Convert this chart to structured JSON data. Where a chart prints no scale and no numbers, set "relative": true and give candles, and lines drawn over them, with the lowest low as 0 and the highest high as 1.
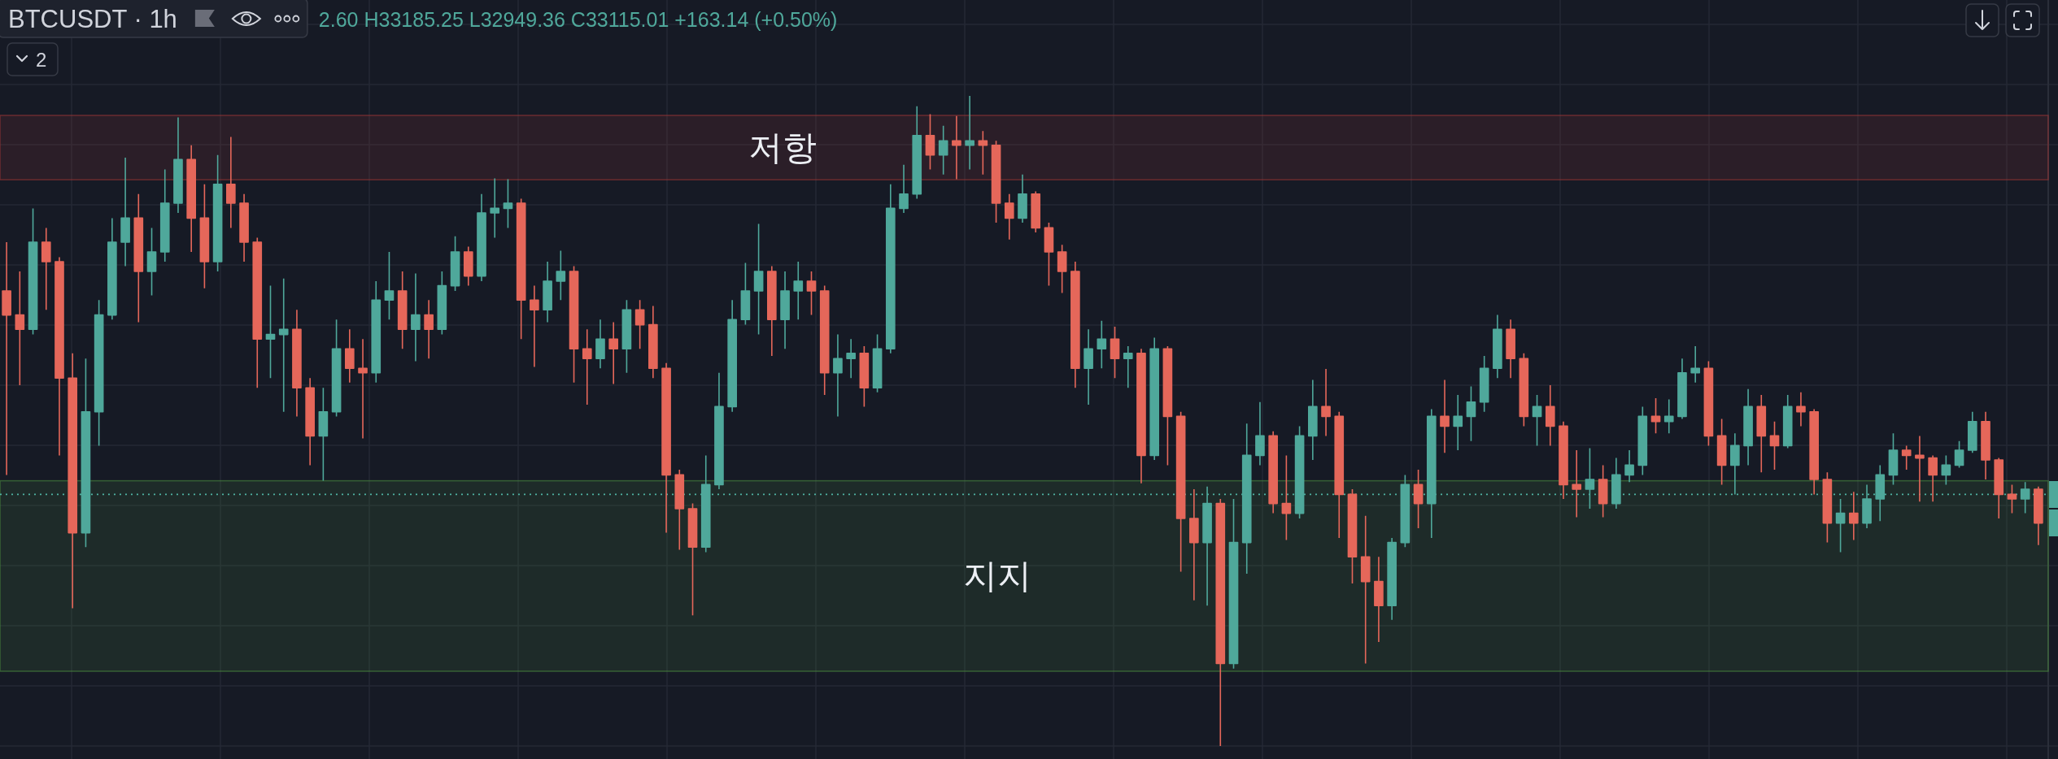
{
  "chart_data": {
    "type": "candlestick",
    "title": "BTCUSDT · 1h",
    "relative": true,
    "grid": true,
    "annotations": [
      "2.60 H33185.25 L32949.36 C33115.01 +163.14 (+0.50%)",
      "2"
    ],
    "bands": [
      {
        "axis": "y",
        "from": 0.871,
        "to": 0.97,
        "label": "저항",
        "color": "#9b3535"
      },
      {
        "axis": "y",
        "from": 0.115,
        "to": 0.408,
        "label": "지지",
        "color": "#4a8a3f"
      }
    ],
    "ref_lines": [
      {
        "axis": "y",
        "value": 0.387,
        "color": "#4fb3a3",
        "line_style": "dotted"
      }
    ],
    "categories": [
      null,
      null,
      null,
      null,
      null,
      null,
      null,
      null,
      null,
      null,
      null,
      null,
      null,
      null,
      null,
      null,
      null,
      null,
      null,
      null,
      null,
      null,
      null,
      null,
      null,
      null,
      null,
      null,
      null,
      null,
      null,
      null,
      null,
      null,
      null,
      null,
      null,
      null,
      null,
      null,
      null,
      null,
      null,
      null,
      null,
      null,
      null,
      null,
      null,
      null,
      null,
      null,
      null,
      null,
      null,
      null,
      null,
      null,
      null,
      null,
      null,
      null,
      null,
      null,
      null,
      null,
      null,
      null,
      null,
      null,
      null,
      null,
      null,
      null,
      null,
      null,
      null,
      null,
      null,
      null,
      null,
      null,
      null,
      null,
      null,
      null,
      null,
      null,
      null,
      null,
      null,
      null,
      null,
      null,
      null,
      null,
      null,
      null,
      null,
      null,
      null,
      null,
      null,
      null,
      null,
      null,
      null,
      null,
      null,
      null,
      null,
      null,
      null,
      null,
      null,
      null,
      null,
      null,
      null,
      null,
      null,
      null,
      null,
      null,
      null,
      null,
      null,
      null,
      null,
      null,
      null,
      null,
      null,
      null,
      null,
      null,
      null,
      null,
      null,
      null,
      null,
      null,
      null,
      null,
      null,
      null,
      null,
      null,
      null,
      null,
      null,
      null,
      null,
      null,
      null
    ],
    "ohlc": [
      [
        0.7,
        0.775,
        0.417,
        0.663
      ],
      [
        0.663,
        0.73,
        0.555,
        0.641
      ],
      [
        0.641,
        0.827,
        0.633,
        0.775
      ],
      [
        0.775,
        0.797,
        0.671,
        0.745
      ],
      [
        0.745,
        0.752,
        0.447,
        0.566
      ],
      [
        0.566,
        0.604,
        0.212,
        0.328
      ],
      [
        0.328,
        0.596,
        0.306,
        0.514
      ],
      [
        0.514,
        0.686,
        0.462,
        0.663
      ],
      [
        0.663,
        0.812,
        0.656,
        0.775
      ],
      [
        0.775,
        0.905,
        0.738,
        0.812
      ],
      [
        0.812,
        0.849,
        0.652,
        0.73
      ],
      [
        0.73,
        0.797,
        0.693,
        0.76
      ],
      [
        0.76,
        0.887,
        0.745,
        0.835
      ],
      [
        0.835,
        0.967,
        0.82,
        0.902
      ],
      [
        0.902,
        0.924,
        0.76,
        0.812
      ],
      [
        0.812,
        0.864,
        0.704,
        0.745
      ],
      [
        0.745,
        0.909,
        0.73,
        0.864
      ],
      [
        0.864,
        0.937,
        0.797,
        0.835
      ],
      [
        0.835,
        0.849,
        0.745,
        0.775
      ],
      [
        0.775,
        0.782,
        0.551,
        0.626
      ],
      [
        0.626,
        0.708,
        0.566,
        0.633
      ],
      [
        0.633,
        0.719,
        0.514,
        0.641
      ],
      [
        0.641,
        0.671,
        0.507,
        0.551
      ],
      [
        0.551,
        0.566,
        0.432,
        0.477
      ],
      [
        0.477,
        0.551,
        0.408,
        0.514
      ],
      [
        0.514,
        0.656,
        0.507,
        0.611
      ],
      [
        0.611,
        0.641,
        0.559,
        0.581
      ],
      [
        0.581,
        0.626,
        0.473,
        0.574
      ],
      [
        0.574,
        0.715,
        0.559,
        0.686
      ],
      [
        0.686,
        0.76,
        0.656,
        0.7
      ],
      [
        0.7,
        0.73,
        0.611,
        0.641
      ],
      [
        0.641,
        0.727,
        0.592,
        0.663
      ],
      [
        0.663,
        0.686,
        0.596,
        0.641
      ],
      [
        0.641,
        0.73,
        0.633,
        0.708
      ],
      [
        0.708,
        0.784,
        0.7,
        0.76
      ],
      [
        0.76,
        0.768,
        0.708,
        0.723
      ],
      [
        0.723,
        0.849,
        0.715,
        0.82
      ],
      [
        0.82,
        0.873,
        0.782,
        0.827
      ],
      [
        0.827,
        0.872,
        0.797,
        0.835
      ],
      [
        0.835,
        0.842,
        0.626,
        0.686
      ],
      [
        0.686,
        0.708,
        0.583,
        0.671
      ],
      [
        0.671,
        0.745,
        0.652,
        0.715
      ],
      [
        0.715,
        0.762,
        0.686,
        0.73
      ],
      [
        0.73,
        0.738,
        0.559,
        0.611
      ],
      [
        0.611,
        0.641,
        0.525,
        0.596
      ],
      [
        0.596,
        0.656,
        0.581,
        0.626
      ],
      [
        0.626,
        0.652,
        0.557,
        0.611
      ],
      [
        0.611,
        0.686,
        0.574,
        0.671
      ],
      [
        0.671,
        0.686,
        0.611,
        0.648
      ],
      [
        0.648,
        0.677,
        0.566,
        0.581
      ],
      [
        0.581,
        0.589,
        0.328,
        0.417
      ],
      [
        0.417,
        0.425,
        0.302,
        0.365
      ],
      [
        0.365,
        0.373,
        0.201,
        0.306
      ],
      [
        0.306,
        0.447,
        0.298,
        0.402
      ],
      [
        0.402,
        0.574,
        0.395,
        0.522
      ],
      [
        0.522,
        0.686,
        0.514,
        0.656
      ],
      [
        0.656,
        0.743,
        0.648,
        0.7
      ],
      [
        0.7,
        0.803,
        0.633,
        0.73
      ],
      [
        0.73,
        0.738,
        0.6,
        0.656
      ],
      [
        0.656,
        0.73,
        0.611,
        0.7
      ],
      [
        0.7,
        0.745,
        0.656,
        0.715
      ],
      [
        0.715,
        0.73,
        0.663,
        0.7
      ],
      [
        0.7,
        0.708,
        0.54,
        0.574
      ],
      [
        0.574,
        0.633,
        0.507,
        0.596
      ],
      [
        0.596,
        0.626,
        0.566,
        0.604
      ],
      [
        0.604,
        0.615,
        0.522,
        0.551
      ],
      [
        0.551,
        0.633,
        0.544,
        0.611
      ],
      [
        0.611,
        0.864,
        0.604,
        0.827
      ],
      [
        0.827,
        0.894,
        0.82,
        0.849
      ],
      [
        0.849,
        0.984,
        0.842,
        0.939
      ],
      [
        0.939,
        0.972,
        0.887,
        0.909
      ],
      [
        0.909,
        0.954,
        0.879,
        0.931
      ],
      [
        0.931,
        0.969,
        0.872,
        0.924
      ],
      [
        0.924,
        1.0,
        0.887,
        0.931
      ],
      [
        0.931,
        0.946,
        0.879,
        0.924
      ],
      [
        0.924,
        0.931,
        0.805,
        0.835
      ],
      [
        0.835,
        0.849,
        0.779,
        0.812
      ],
      [
        0.812,
        0.879,
        0.805,
        0.849
      ],
      [
        0.849,
        0.853,
        0.79,
        0.797
      ],
      [
        0.797,
        0.805,
        0.708,
        0.76
      ],
      [
        0.76,
        0.771,
        0.697,
        0.73
      ],
      [
        0.73,
        0.745,
        0.551,
        0.581
      ],
      [
        0.581,
        0.641,
        0.525,
        0.611
      ],
      [
        0.611,
        0.654,
        0.581,
        0.626
      ],
      [
        0.626,
        0.645,
        0.566,
        0.596
      ],
      [
        0.596,
        0.615,
        0.551,
        0.604
      ],
      [
        0.604,
        0.611,
        0.404,
        0.447
      ],
      [
        0.447,
        0.628,
        0.44,
        0.611
      ],
      [
        0.611,
        0.615,
        0.432,
        0.507
      ],
      [
        0.507,
        0.514,
        0.268,
        0.35
      ],
      [
        0.35,
        0.395,
        0.224,
        0.313
      ],
      [
        0.313,
        0.399,
        0.216,
        0.373
      ],
      [
        0.373,
        0.38,
        0.0,
        0.127
      ],
      [
        0.127,
        0.38,
        0.119,
        0.313
      ],
      [
        0.313,
        0.496,
        0.265,
        0.447
      ],
      [
        0.447,
        0.529,
        0.432,
        0.477
      ],
      [
        0.477,
        0.484,
        0.358,
        0.373
      ],
      [
        0.373,
        0.447,
        0.317,
        0.358
      ],
      [
        0.358,
        0.492,
        0.35,
        0.477
      ],
      [
        0.477,
        0.563,
        0.44,
        0.522
      ],
      [
        0.522,
        0.58,
        0.477,
        0.507
      ],
      [
        0.507,
        0.514,
        0.32,
        0.387
      ],
      [
        0.387,
        0.395,
        0.25,
        0.291
      ],
      [
        0.291,
        0.354,
        0.127,
        0.253
      ],
      [
        0.253,
        0.291,
        0.16,
        0.216
      ],
      [
        0.216,
        0.32,
        0.194,
        0.313
      ],
      [
        0.313,
        0.417,
        0.306,
        0.402
      ],
      [
        0.402,
        0.425,
        0.335,
        0.373
      ],
      [
        0.373,
        0.518,
        0.32,
        0.507
      ],
      [
        0.507,
        0.563,
        0.451,
        0.492
      ],
      [
        0.492,
        0.54,
        0.455,
        0.507
      ],
      [
        0.507,
        0.553,
        0.469,
        0.529
      ],
      [
        0.529,
        0.6,
        0.514,
        0.581
      ],
      [
        0.581,
        0.663,
        0.566,
        0.641
      ],
      [
        0.641,
        0.656,
        0.566,
        0.596
      ],
      [
        0.596,
        0.604,
        0.492,
        0.507
      ],
      [
        0.507,
        0.54,
        0.462,
        0.522
      ],
      [
        0.522,
        0.555,
        0.462,
        0.492
      ],
      [
        0.492,
        0.499,
        0.38,
        0.402
      ],
      [
        0.402,
        0.455,
        0.352,
        0.395
      ],
      [
        0.395,
        0.458,
        0.365,
        0.41
      ],
      [
        0.41,
        0.432,
        0.352,
        0.373
      ],
      [
        0.373,
        0.443,
        0.365,
        0.417
      ],
      [
        0.417,
        0.455,
        0.406,
        0.432
      ],
      [
        0.432,
        0.522,
        0.417,
        0.507
      ],
      [
        0.507,
        0.535,
        0.481,
        0.499
      ],
      [
        0.499,
        0.533,
        0.481,
        0.507
      ],
      [
        0.507,
        0.596,
        0.503,
        0.574
      ],
      [
        0.574,
        0.615,
        0.559,
        0.581
      ],
      [
        0.581,
        0.592,
        0.462,
        0.477
      ],
      [
        0.477,
        0.503,
        0.402,
        0.432
      ],
      [
        0.432,
        0.481,
        0.387,
        0.462
      ],
      [
        0.462,
        0.549,
        0.432,
        0.522
      ],
      [
        0.522,
        0.54,
        0.421,
        0.477
      ],
      [
        0.477,
        0.499,
        0.425,
        0.462
      ],
      [
        0.462,
        0.54,
        0.458,
        0.522
      ],
      [
        0.522,
        0.544,
        0.492,
        0.514
      ],
      [
        0.514,
        0.518,
        0.387,
        0.41
      ],
      [
        0.41,
        0.421,
        0.313,
        0.343
      ],
      [
        0.343,
        0.38,
        0.298,
        0.358
      ],
      [
        0.358,
        0.391,
        0.317,
        0.343
      ],
      [
        0.343,
        0.402,
        0.335,
        0.38
      ],
      [
        0.38,
        0.432,
        0.346,
        0.417
      ],
      [
        0.417,
        0.481,
        0.402,
        0.455
      ],
      [
        0.455,
        0.462,
        0.425,
        0.447
      ],
      [
        0.447,
        0.477,
        0.376,
        0.443
      ],
      [
        0.443,
        0.447,
        0.376,
        0.417
      ],
      [
        0.417,
        0.447,
        0.402,
        0.432
      ],
      [
        0.432,
        0.469,
        0.428,
        0.455
      ],
      [
        0.455,
        0.514,
        0.451,
        0.499
      ],
      [
        0.499,
        0.514,
        0.41,
        0.44
      ],
      [
        0.44,
        0.443,
        0.35,
        0.387
      ],
      [
        0.387,
        0.402,
        0.358,
        0.38
      ],
      [
        0.38,
        0.406,
        0.358,
        0.395
      ],
      [
        0.395,
        0.399,
        0.309,
        0.343
      ]
    ]
  }
}
